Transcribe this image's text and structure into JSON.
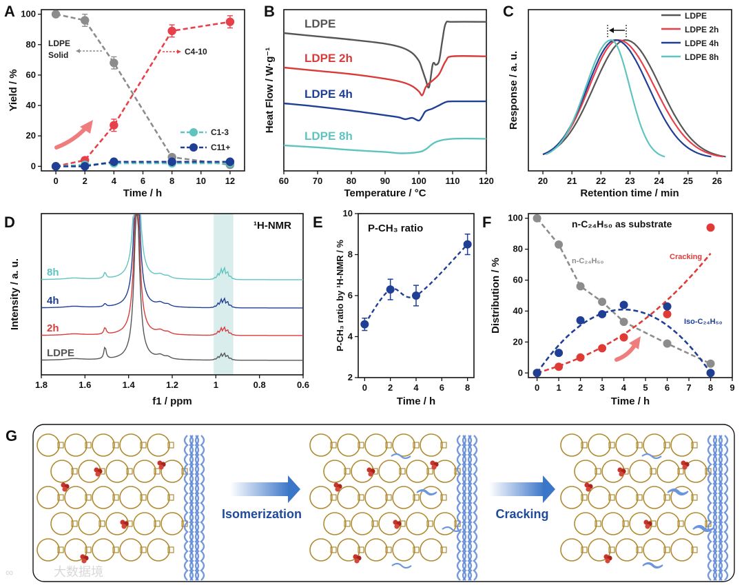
{
  "chart_data": [
    {
      "panel": "A",
      "type": "line",
      "xlabel": "Time / h",
      "ylabel": "Yield / %",
      "xlim": [
        -1,
        13
      ],
      "ylim": [
        -3,
        103
      ],
      "x_ticks": [
        0,
        2,
        4,
        6,
        8,
        10,
        12
      ],
      "y_ticks": [
        0,
        20,
        40,
        60,
        80,
        100
      ],
      "legend_placement": "bottom-right",
      "series": [
        {
          "name": "LDPE Solid",
          "color": "#8c8c8c",
          "x": [
            0,
            2,
            4,
            8,
            12
          ],
          "values": [
            100,
            96,
            68,
            6,
            1
          ],
          "err": [
            0,
            4,
            4,
            2,
            2
          ]
        },
        {
          "name": "C4-10",
          "color": "#e8404a",
          "x": [
            0,
            2,
            4,
            8,
            12
          ],
          "values": [
            0,
            4,
            27,
            89,
            95
          ],
          "err": [
            0,
            1,
            4,
            4,
            4
          ]
        },
        {
          "name": "C1-3",
          "color": "#5fc4c0",
          "x": [
            0,
            2,
            4,
            8,
            12
          ],
          "values": [
            0,
            1,
            2,
            2,
            2
          ],
          "err": [
            0,
            0,
            0,
            0,
            0
          ]
        },
        {
          "name": "C11+",
          "color": "#1f3f94",
          "x": [
            0,
            2,
            4,
            8,
            12
          ],
          "values": [
            0,
            0,
            3,
            3,
            3
          ],
          "err": [
            0,
            0,
            0,
            0,
            0
          ]
        }
      ],
      "annotations": {
        "solid_label_1": "LDPE",
        "solid_label_2": "Solid",
        "c410_label": "C4-10"
      }
    },
    {
      "panel": "B",
      "type": "line",
      "xlabel": "Temperature / °C",
      "ylabel": "Heat Flow / W·g⁻¹",
      "xlim": [
        60,
        120
      ],
      "x_ticks": [
        60,
        70,
        80,
        90,
        100,
        110,
        120
      ],
      "series": [
        {
          "name": "LDPE",
          "color": "#555555",
          "x": [
            60,
            70,
            80,
            90,
            95,
            98,
            100,
            101,
            102,
            103,
            104,
            104.5,
            105,
            106,
            107,
            108,
            110,
            120
          ],
          "values": [
            0,
            -0.05,
            -0.1,
            -0.16,
            -0.22,
            -0.3,
            -0.42,
            -0.55,
            -0.7,
            -0.82,
            -0.5,
            -0.45,
            -0.48,
            -0.42,
            -0.1,
            0.15,
            0.17,
            0.17
          ]
        },
        {
          "name": "LDPE 2h",
          "color": "#d93b3b",
          "x": [
            60,
            70,
            80,
            90,
            95,
            98,
            100,
            101,
            102,
            103,
            104,
            106,
            108,
            110,
            120
          ],
          "values": [
            0,
            -0.05,
            -0.1,
            -0.17,
            -0.22,
            -0.28,
            -0.36,
            -0.42,
            -0.3,
            -0.24,
            -0.2,
            -0.1,
            0.1,
            0.17,
            0.17
          ]
        },
        {
          "name": "LDPE 4h",
          "color": "#1f3f94",
          "x": [
            60,
            70,
            80,
            90,
            94,
            96,
            98,
            100,
            101,
            102,
            104,
            106,
            108,
            110,
            120
          ],
          "values": [
            0,
            -0.05,
            -0.11,
            -0.18,
            -0.21,
            -0.24,
            -0.22,
            -0.26,
            -0.2,
            -0.12,
            -0.08,
            -0.03,
            0.02,
            0.03,
            0.03
          ]
        },
        {
          "name": "LDPE 8h",
          "color": "#5fc4c0",
          "x": [
            60,
            70,
            80,
            90,
            95,
            100,
            102,
            105,
            110,
            120
          ],
          "values": [
            0,
            -0.03,
            -0.07,
            -0.1,
            -0.12,
            -0.1,
            -0.06,
            0.05,
            0.1,
            0.1
          ]
        }
      ]
    },
    {
      "panel": "C",
      "type": "line",
      "xlabel": "Retention time / min",
      "ylabel": "Response / a. u.",
      "xlim": [
        19.5,
        26.5
      ],
      "x_ticks": [
        20,
        21,
        22,
        23,
        24,
        25,
        26
      ],
      "legend_placement": "top-right",
      "series": [
        {
          "name": "LDPE",
          "color": "#555555",
          "peak": 22.85,
          "start": 20.0,
          "end": 26.3
        },
        {
          "name": "LDPE 2h",
          "color": "#e8404a",
          "peak": 22.6,
          "start": 20.0,
          "end": 26.2
        },
        {
          "name": "LDPE 4h",
          "color": "#1f3f94",
          "peak": 22.5,
          "start": 20.0,
          "end": 25.8
        },
        {
          "name": "LDPE 8h",
          "color": "#5fc4c0",
          "peak": 22.35,
          "start": 20.1,
          "end": 24.2
        }
      ]
    },
    {
      "panel": "D",
      "type": "line",
      "title": "¹H-NMR",
      "xlabel": "f1 / ppm",
      "ylabel": "Intensity / a. u.",
      "xlim": [
        1.8,
        0.6
      ],
      "x_ticks": [
        1.8,
        1.6,
        1.4,
        1.2,
        1.0,
        0.8,
        0.6
      ],
      "highlight_range": [
        1.01,
        0.92
      ],
      "series": [
        {
          "name": "8h",
          "color": "#5fc4c0",
          "peak_1_5": 0.5,
          "peak_0_9": 1.0
        },
        {
          "name": "4h",
          "color": "#1f3f94",
          "peak_1_5": 0.25,
          "peak_0_9": 0.8
        },
        {
          "name": "2h",
          "color": "#d93b3b",
          "peak_1_5": 0.55,
          "peak_0_9": 0.7
        },
        {
          "name": "LDPE",
          "color": "#555555",
          "peak_1_5": 1.0,
          "peak_0_9": 0.6
        }
      ]
    },
    {
      "panel": "E",
      "type": "scatter",
      "title": "P-CH₃ ratio",
      "xlabel": "Time / h",
      "ylabel": "P-CH₃ ratio by ¹H-NMR / %",
      "xlim": [
        -0.5,
        8.5
      ],
      "ylim": [
        2,
        10
      ],
      "x_ticks": [
        0,
        2,
        4,
        6,
        8
      ],
      "y_ticks": [
        2,
        4,
        6,
        8,
        10
      ],
      "series": [
        {
          "name": "",
          "color": "#1f3f94",
          "x": [
            0,
            2,
            4,
            8
          ],
          "values": [
            4.6,
            6.3,
            6.0,
            8.5
          ],
          "err": [
            0.3,
            0.5,
            0.5,
            0.5
          ]
        }
      ]
    },
    {
      "panel": "F",
      "type": "scatter",
      "title": "n-C₂₄H₅₀ as substrate",
      "xlabel": "Time / h",
      "ylabel": "Distribution / %",
      "xlim": [
        -0.4,
        9
      ],
      "ylim": [
        -3,
        103
      ],
      "x_ticks": [
        0,
        1,
        2,
        3,
        4,
        5,
        6,
        7,
        8,
        9
      ],
      "y_ticks": [
        0,
        20,
        40,
        60,
        80,
        100
      ],
      "series": [
        {
          "name": "n-C₂₄H₅₀",
          "color": "#8c8c8c",
          "x": [
            0,
            1,
            2,
            3,
            4,
            6,
            8
          ],
          "values": [
            100,
            83,
            56,
            46,
            33,
            19,
            6
          ]
        },
        {
          "name": "Cracking",
          "color": "#e03a36",
          "x": [
            0,
            1,
            2,
            3,
            4,
            6,
            8
          ],
          "values": [
            0,
            4,
            10,
            16,
            23,
            38,
            94
          ]
        },
        {
          "name": "Iso-C₂₄H₅₀",
          "color": "#1f3f94",
          "x": [
            0,
            1,
            2,
            3,
            4,
            6,
            8
          ],
          "values": [
            0,
            13,
            34,
            38,
            44,
            43,
            0
          ]
        }
      ]
    }
  ],
  "panel_labels": [
    "A",
    "B",
    "C",
    "D",
    "E",
    "F",
    "G"
  ],
  "schematic": {
    "step1_label": "Isomerization",
    "step2_label": "Cracking",
    "arrow_color": "#3c76c8",
    "label_color": "#1f4a9a"
  },
  "watermark": "大数据境"
}
